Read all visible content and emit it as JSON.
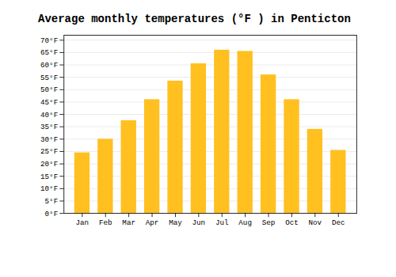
{
  "chart_data": {
    "type": "bar",
    "title": "Average monthly temperatures (°F ) in Penticton",
    "categories": [
      "Jan",
      "Feb",
      "Mar",
      "Apr",
      "May",
      "Jun",
      "Jul",
      "Aug",
      "Sep",
      "Oct",
      "Nov",
      "Dec"
    ],
    "values": [
      24.5,
      30.0,
      37.5,
      46.0,
      53.5,
      60.5,
      66.0,
      65.5,
      56.0,
      46.0,
      34.0,
      25.5
    ],
    "color": "#FFC020",
    "ylim": [
      0,
      72
    ],
    "yticks": [
      {
        "value": 0,
        "label": "0°F"
      },
      {
        "value": 5,
        "label": "5°F"
      },
      {
        "value": 10,
        "label": "10°F"
      },
      {
        "value": 15,
        "label": "15°F"
      },
      {
        "value": 20,
        "label": "20°F"
      },
      {
        "value": 25,
        "label": "25°F"
      },
      {
        "value": 30,
        "label": "30°F"
      },
      {
        "value": 35,
        "label": "35°F"
      },
      {
        "value": 40,
        "label": "40°F"
      },
      {
        "value": 45,
        "label": "45°F"
      },
      {
        "value": 50,
        "label": "50°F"
      },
      {
        "value": 55,
        "label": "55°F"
      },
      {
        "value": 60,
        "label": "60°F"
      },
      {
        "value": 65,
        "label": "65°F"
      },
      {
        "value": 70,
        "label": "70°F"
      }
    ],
    "grid": true
  }
}
